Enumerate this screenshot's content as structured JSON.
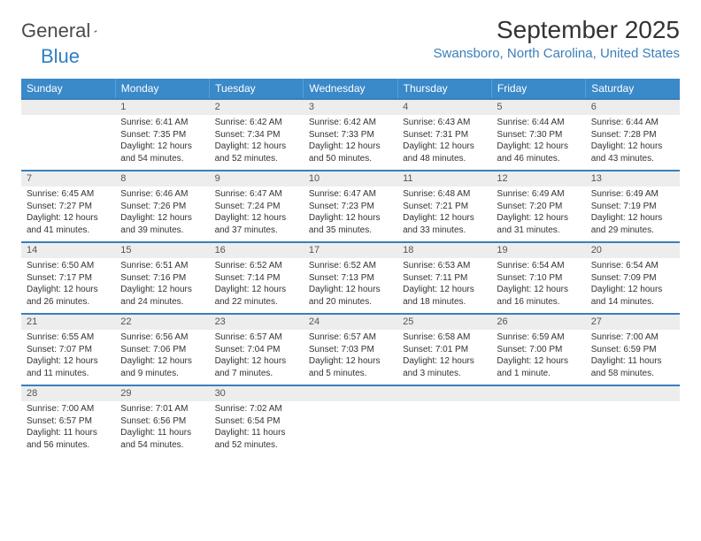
{
  "logo": {
    "word1": "General",
    "word2": "Blue"
  },
  "title": "September 2025",
  "location": "Swansboro, North Carolina, United States",
  "colors": {
    "header_bg": "#3a89c9",
    "rule": "#3a7fbb",
    "daybar": "#ededed",
    "location_text": "#3a7fbb"
  },
  "weekdays": [
    "Sunday",
    "Monday",
    "Tuesday",
    "Wednesday",
    "Thursday",
    "Friday",
    "Saturday"
  ],
  "weeks": [
    [
      null,
      {
        "n": "1",
        "sunrise": "Sunrise: 6:41 AM",
        "sunset": "Sunset: 7:35 PM",
        "dl1": "Daylight: 12 hours",
        "dl2": "and 54 minutes."
      },
      {
        "n": "2",
        "sunrise": "Sunrise: 6:42 AM",
        "sunset": "Sunset: 7:34 PM",
        "dl1": "Daylight: 12 hours",
        "dl2": "and 52 minutes."
      },
      {
        "n": "3",
        "sunrise": "Sunrise: 6:42 AM",
        "sunset": "Sunset: 7:33 PM",
        "dl1": "Daylight: 12 hours",
        "dl2": "and 50 minutes."
      },
      {
        "n": "4",
        "sunrise": "Sunrise: 6:43 AM",
        "sunset": "Sunset: 7:31 PM",
        "dl1": "Daylight: 12 hours",
        "dl2": "and 48 minutes."
      },
      {
        "n": "5",
        "sunrise": "Sunrise: 6:44 AM",
        "sunset": "Sunset: 7:30 PM",
        "dl1": "Daylight: 12 hours",
        "dl2": "and 46 minutes."
      },
      {
        "n": "6",
        "sunrise": "Sunrise: 6:44 AM",
        "sunset": "Sunset: 7:28 PM",
        "dl1": "Daylight: 12 hours",
        "dl2": "and 43 minutes."
      }
    ],
    [
      {
        "n": "7",
        "sunrise": "Sunrise: 6:45 AM",
        "sunset": "Sunset: 7:27 PM",
        "dl1": "Daylight: 12 hours",
        "dl2": "and 41 minutes."
      },
      {
        "n": "8",
        "sunrise": "Sunrise: 6:46 AM",
        "sunset": "Sunset: 7:26 PM",
        "dl1": "Daylight: 12 hours",
        "dl2": "and 39 minutes."
      },
      {
        "n": "9",
        "sunrise": "Sunrise: 6:47 AM",
        "sunset": "Sunset: 7:24 PM",
        "dl1": "Daylight: 12 hours",
        "dl2": "and 37 minutes."
      },
      {
        "n": "10",
        "sunrise": "Sunrise: 6:47 AM",
        "sunset": "Sunset: 7:23 PM",
        "dl1": "Daylight: 12 hours",
        "dl2": "and 35 minutes."
      },
      {
        "n": "11",
        "sunrise": "Sunrise: 6:48 AM",
        "sunset": "Sunset: 7:21 PM",
        "dl1": "Daylight: 12 hours",
        "dl2": "and 33 minutes."
      },
      {
        "n": "12",
        "sunrise": "Sunrise: 6:49 AM",
        "sunset": "Sunset: 7:20 PM",
        "dl1": "Daylight: 12 hours",
        "dl2": "and 31 minutes."
      },
      {
        "n": "13",
        "sunrise": "Sunrise: 6:49 AM",
        "sunset": "Sunset: 7:19 PM",
        "dl1": "Daylight: 12 hours",
        "dl2": "and 29 minutes."
      }
    ],
    [
      {
        "n": "14",
        "sunrise": "Sunrise: 6:50 AM",
        "sunset": "Sunset: 7:17 PM",
        "dl1": "Daylight: 12 hours",
        "dl2": "and 26 minutes."
      },
      {
        "n": "15",
        "sunrise": "Sunrise: 6:51 AM",
        "sunset": "Sunset: 7:16 PM",
        "dl1": "Daylight: 12 hours",
        "dl2": "and 24 minutes."
      },
      {
        "n": "16",
        "sunrise": "Sunrise: 6:52 AM",
        "sunset": "Sunset: 7:14 PM",
        "dl1": "Daylight: 12 hours",
        "dl2": "and 22 minutes."
      },
      {
        "n": "17",
        "sunrise": "Sunrise: 6:52 AM",
        "sunset": "Sunset: 7:13 PM",
        "dl1": "Daylight: 12 hours",
        "dl2": "and 20 minutes."
      },
      {
        "n": "18",
        "sunrise": "Sunrise: 6:53 AM",
        "sunset": "Sunset: 7:11 PM",
        "dl1": "Daylight: 12 hours",
        "dl2": "and 18 minutes."
      },
      {
        "n": "19",
        "sunrise": "Sunrise: 6:54 AM",
        "sunset": "Sunset: 7:10 PM",
        "dl1": "Daylight: 12 hours",
        "dl2": "and 16 minutes."
      },
      {
        "n": "20",
        "sunrise": "Sunrise: 6:54 AM",
        "sunset": "Sunset: 7:09 PM",
        "dl1": "Daylight: 12 hours",
        "dl2": "and 14 minutes."
      }
    ],
    [
      {
        "n": "21",
        "sunrise": "Sunrise: 6:55 AM",
        "sunset": "Sunset: 7:07 PM",
        "dl1": "Daylight: 12 hours",
        "dl2": "and 11 minutes."
      },
      {
        "n": "22",
        "sunrise": "Sunrise: 6:56 AM",
        "sunset": "Sunset: 7:06 PM",
        "dl1": "Daylight: 12 hours",
        "dl2": "and 9 minutes."
      },
      {
        "n": "23",
        "sunrise": "Sunrise: 6:57 AM",
        "sunset": "Sunset: 7:04 PM",
        "dl1": "Daylight: 12 hours",
        "dl2": "and 7 minutes."
      },
      {
        "n": "24",
        "sunrise": "Sunrise: 6:57 AM",
        "sunset": "Sunset: 7:03 PM",
        "dl1": "Daylight: 12 hours",
        "dl2": "and 5 minutes."
      },
      {
        "n": "25",
        "sunrise": "Sunrise: 6:58 AM",
        "sunset": "Sunset: 7:01 PM",
        "dl1": "Daylight: 12 hours",
        "dl2": "and 3 minutes."
      },
      {
        "n": "26",
        "sunrise": "Sunrise: 6:59 AM",
        "sunset": "Sunset: 7:00 PM",
        "dl1": "Daylight: 12 hours",
        "dl2": "and 1 minute."
      },
      {
        "n": "27",
        "sunrise": "Sunrise: 7:00 AM",
        "sunset": "Sunset: 6:59 PM",
        "dl1": "Daylight: 11 hours",
        "dl2": "and 58 minutes."
      }
    ],
    [
      {
        "n": "28",
        "sunrise": "Sunrise: 7:00 AM",
        "sunset": "Sunset: 6:57 PM",
        "dl1": "Daylight: 11 hours",
        "dl2": "and 56 minutes."
      },
      {
        "n": "29",
        "sunrise": "Sunrise: 7:01 AM",
        "sunset": "Sunset: 6:56 PM",
        "dl1": "Daylight: 11 hours",
        "dl2": "and 54 minutes."
      },
      {
        "n": "30",
        "sunrise": "Sunrise: 7:02 AM",
        "sunset": "Sunset: 6:54 PM",
        "dl1": "Daylight: 11 hours",
        "dl2": "and 52 minutes."
      },
      null,
      null,
      null,
      null
    ]
  ]
}
